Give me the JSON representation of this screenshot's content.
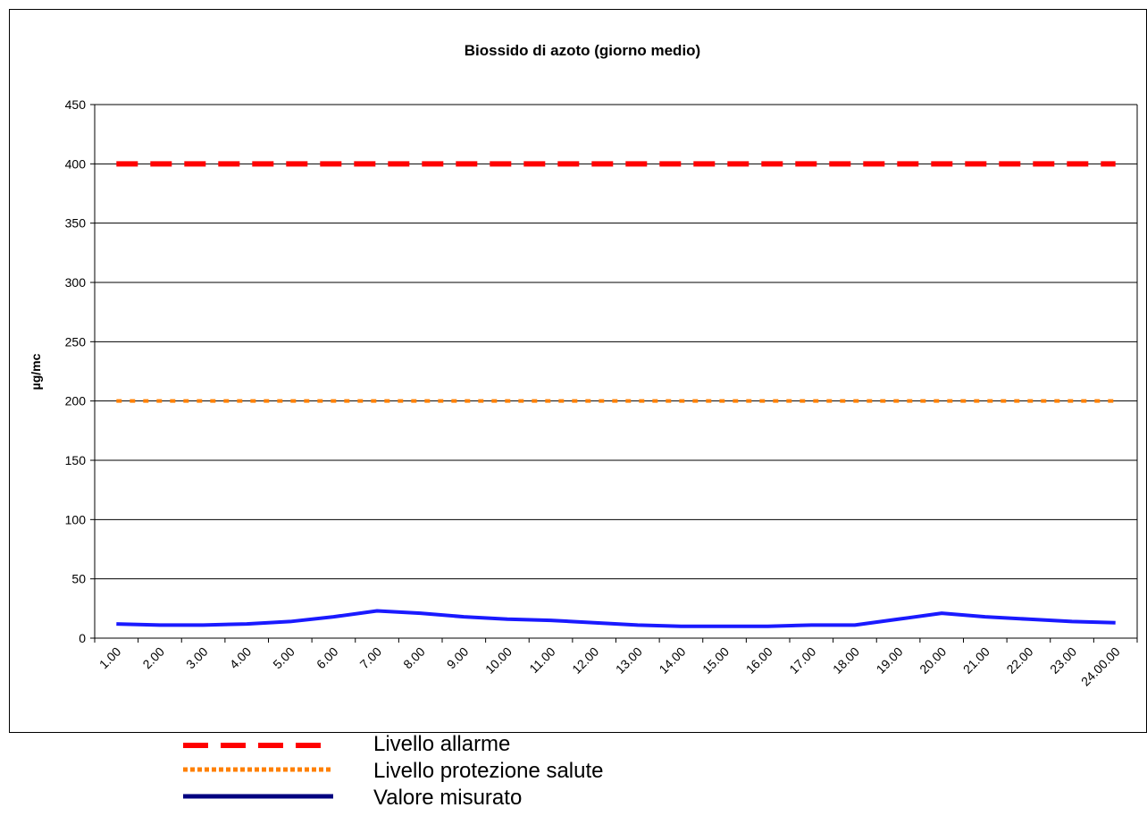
{
  "chart_data": {
    "type": "line",
    "title": "Biossido di azoto (giorno medio)",
    "xlabel": "",
    "ylabel": "µg/mc",
    "ylim": [
      0,
      450
    ],
    "yticks": [
      0,
      50,
      100,
      150,
      200,
      250,
      300,
      350,
      400,
      450
    ],
    "grid": true,
    "legend_position": "bottom",
    "categories": [
      "1.00",
      "2.00",
      "3.00",
      "4.00",
      "5.00",
      "6.00",
      "7.00",
      "8.00",
      "9.00",
      "10.00",
      "11.00",
      "12.00",
      "13.00",
      "14.00",
      "15.00",
      "16.00",
      "17.00",
      "18.00",
      "19.00",
      "20.00",
      "21.00",
      "22.00",
      "23.00",
      "24.00.00"
    ],
    "series": [
      {
        "name": "Livello allarme",
        "color": "#ff0000",
        "style": "dashed",
        "values": [
          400,
          400,
          400,
          400,
          400,
          400,
          400,
          400,
          400,
          400,
          400,
          400,
          400,
          400,
          400,
          400,
          400,
          400,
          400,
          400,
          400,
          400,
          400,
          400
        ]
      },
      {
        "name": "Livello protezione salute",
        "color": "#ff8000",
        "style": "dotted",
        "values": [
          200,
          200,
          200,
          200,
          200,
          200,
          200,
          200,
          200,
          200,
          200,
          200,
          200,
          200,
          200,
          200,
          200,
          200,
          200,
          200,
          200,
          200,
          200,
          200
        ]
      },
      {
        "name": "Valore misurato",
        "color": "#1a1aff",
        "style": "solid",
        "values": [
          12,
          11,
          11,
          12,
          14,
          18,
          23,
          21,
          18,
          16,
          15,
          13,
          11,
          10,
          10,
          10,
          11,
          11,
          16,
          21,
          18,
          16,
          14,
          13
        ]
      }
    ]
  }
}
